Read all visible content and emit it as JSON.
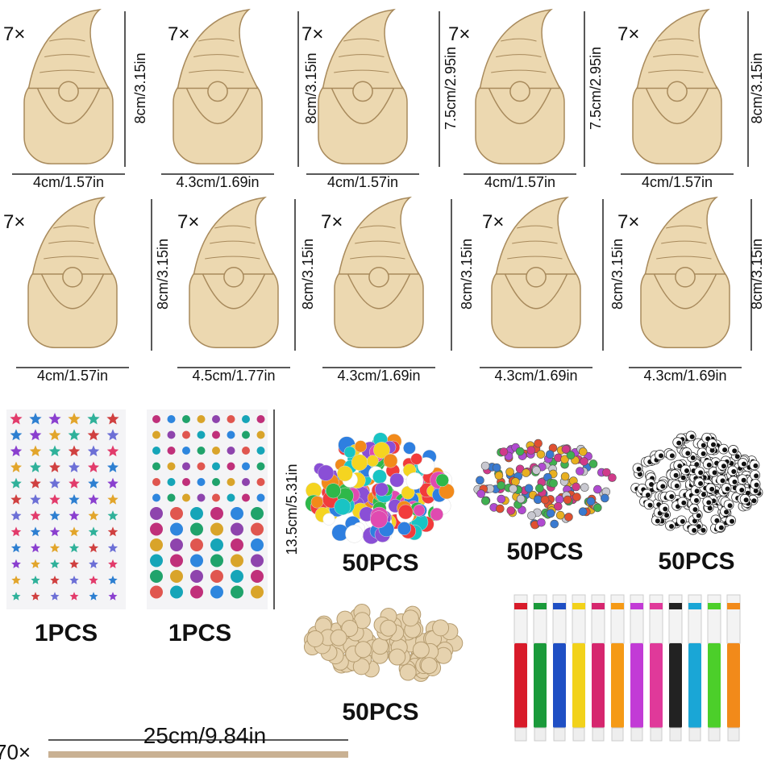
{
  "gnomes": [
    {
      "count": "7×",
      "width": "4cm/1.57in",
      "height": "8cm/3.15in"
    },
    {
      "count": "7×",
      "width": "4.3cm/1.69in",
      "height": "8cm/3.15in"
    },
    {
      "count": "7×",
      "width": "4cm/1.57in",
      "height": "7.5cm/2.95in"
    },
    {
      "count": "7×",
      "width": "4cm/1.57in",
      "height": "7.5cm/2.95in"
    },
    {
      "count": "7×",
      "width": "4cm/1.57in",
      "height": "8cm/3.15in"
    },
    {
      "count": "7×",
      "width": "4cm/1.57in",
      "height": "8cm/3.15in"
    },
    {
      "count": "7×",
      "width": "4.5cm/1.77in",
      "height": "8cm/3.15in"
    },
    {
      "count": "7×",
      "width": "4.3cm/1.69in",
      "height": "8cm/3.15in"
    },
    {
      "count": "7×",
      "width": "4.3cm/1.69in",
      "height": "8cm/3.15in"
    },
    {
      "count": "7×",
      "width": "4.3cm/1.69in",
      "height": "8cm/3.15in"
    }
  ],
  "supplies": {
    "star_stickers": {
      "count": "1PCS"
    },
    "gem_stickers": {
      "count": "1PCS",
      "size": "13.5cm/5.31in"
    },
    "pompoms": {
      "count": "50PCS"
    },
    "bells": {
      "count": "50PCS"
    },
    "googly_eyes": {
      "count": "50PCS"
    },
    "wood_beads": {
      "count": "50PCS"
    },
    "rope": {
      "count": "70×",
      "length": "25cm/9.84in"
    },
    "markers": {
      "colors": [
        "#d81b2a",
        "#1a9a3a",
        "#1f4fc4",
        "#f2d21a",
        "#d6266e",
        "#f59a16",
        "#c23bd6",
        "#e0399a",
        "#222222",
        "#1aa6d6",
        "#4ccf2a",
        "#f28a1a"
      ]
    }
  }
}
